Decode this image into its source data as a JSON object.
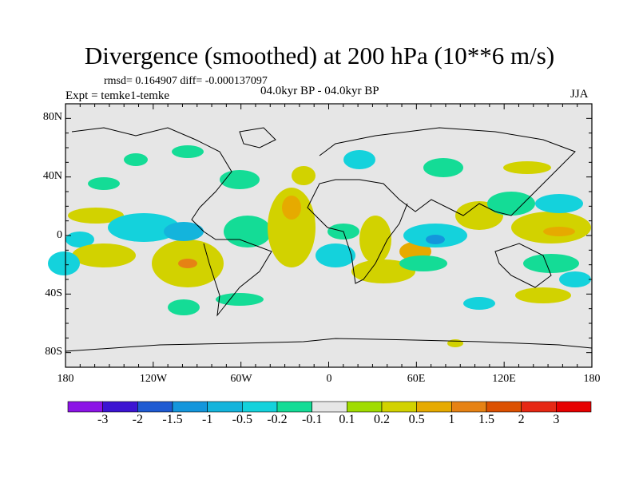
{
  "title": "Divergence (smoothed) at 200 hPa (10**6 m/s)",
  "stats": "rmsd= 0.164907 diff= -0.000137097",
  "experiment": "Expt = temke1-temke",
  "period": "04.0kyr BP - 04.0kyr BP",
  "season": "JJA",
  "map": {
    "lat_labels": [
      "80N",
      "40N",
      "0",
      "40S",
      "80S"
    ],
    "lon_labels": [
      "180",
      "120W",
      "60W",
      "0",
      "60E",
      "120E",
      "180"
    ],
    "background_color": "#e6e6e6"
  },
  "colorbar": {
    "labels": [
      "-3",
      "-2",
      "-1.5",
      "-1",
      "-0.5",
      "-0.2",
      "-0.1",
      "0.1",
      "0.2",
      "0.5",
      "1",
      "1.5",
      "2",
      "3"
    ],
    "colors": [
      "#8c14e6",
      "#3c14d2",
      "#1e5ad2",
      "#1496dc",
      "#14b4dc",
      "#14d2dc",
      "#14dc96",
      "#e6e6e6",
      "#a0dc00",
      "#d2d200",
      "#e6aa00",
      "#e68214",
      "#dc5000",
      "#e62814",
      "#e60000"
    ]
  }
}
